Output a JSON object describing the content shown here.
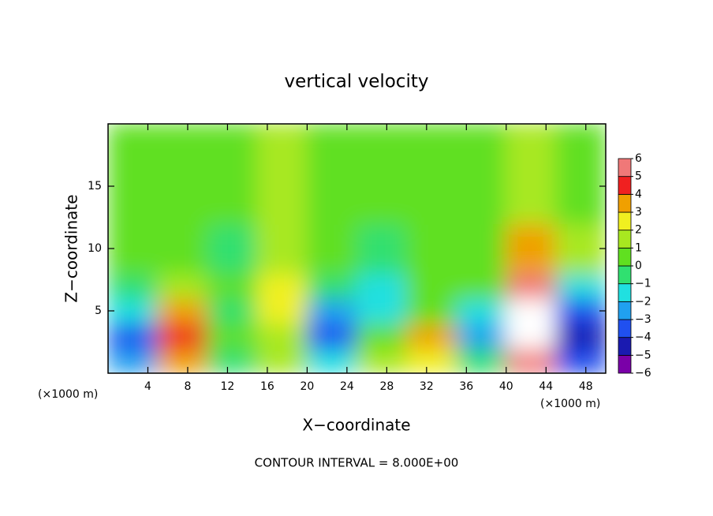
{
  "chart_data": {
    "type": "heatmap",
    "title": "vertical velocity",
    "x_label": "X−coordinate",
    "y_label": "Z−coordinate",
    "x_unit": "(×1000 m)",
    "y_unit": "(×1000 m)",
    "footer": "CONTOUR INTERVAL = 8.000E+00",
    "x": [
      0,
      5,
      10,
      15,
      20,
      25,
      30,
      35,
      40,
      45,
      50
    ],
    "z": [
      0,
      2,
      4,
      6,
      8,
      12,
      20
    ],
    "values": [
      [
        -3,
        3,
        -1,
        1,
        -2,
        1,
        2,
        -1,
        5,
        -4
      ],
      [
        -4,
        4,
        0,
        1,
        -4,
        0,
        3,
        -3,
        7,
        -5
      ],
      [
        -2,
        3,
        -1,
        2,
        -3,
        -2,
        0,
        -2,
        7,
        -4
      ],
      [
        -1,
        1,
        0,
        2,
        -1,
        -2,
        0,
        0,
        5,
        -2
      ],
      [
        0,
        0,
        -1,
        1,
        0,
        -1,
        0,
        0,
        3,
        1
      ],
      [
        0,
        0,
        0,
        1,
        0,
        0,
        0,
        0,
        1,
        0
      ]
    ],
    "xlim": [
      0,
      50
    ],
    "ylim": [
      0,
      20
    ],
    "xticks": [
      4,
      8,
      12,
      16,
      20,
      24,
      28,
      32,
      36,
      40,
      44,
      48
    ],
    "yticks": [
      5,
      10,
      15
    ],
    "colorbar": {
      "lim": [
        -6,
        6
      ],
      "ticks": [
        6,
        5,
        4,
        3,
        2,
        1,
        0,
        {
          "value": -1,
          "label": "−1"
        },
        {
          "value": -2,
          "label": "−2"
        },
        {
          "value": -3,
          "label": "−3"
        },
        {
          "value": -4,
          "label": "−4"
        },
        {
          "value": -5,
          "label": "−5"
        },
        {
          "value": -6,
          "label": "−6"
        }
      ],
      "colors": [
        "#7a00a8",
        "#1a1ab0",
        "#2050f0",
        "#20a0f0",
        "#20e0e0",
        "#30e070",
        "#60e020",
        "#a8e820",
        "#f0f020",
        "#f0a000",
        "#f02020",
        "#f07878"
      ],
      "over_color": "#ffffff"
    }
  }
}
